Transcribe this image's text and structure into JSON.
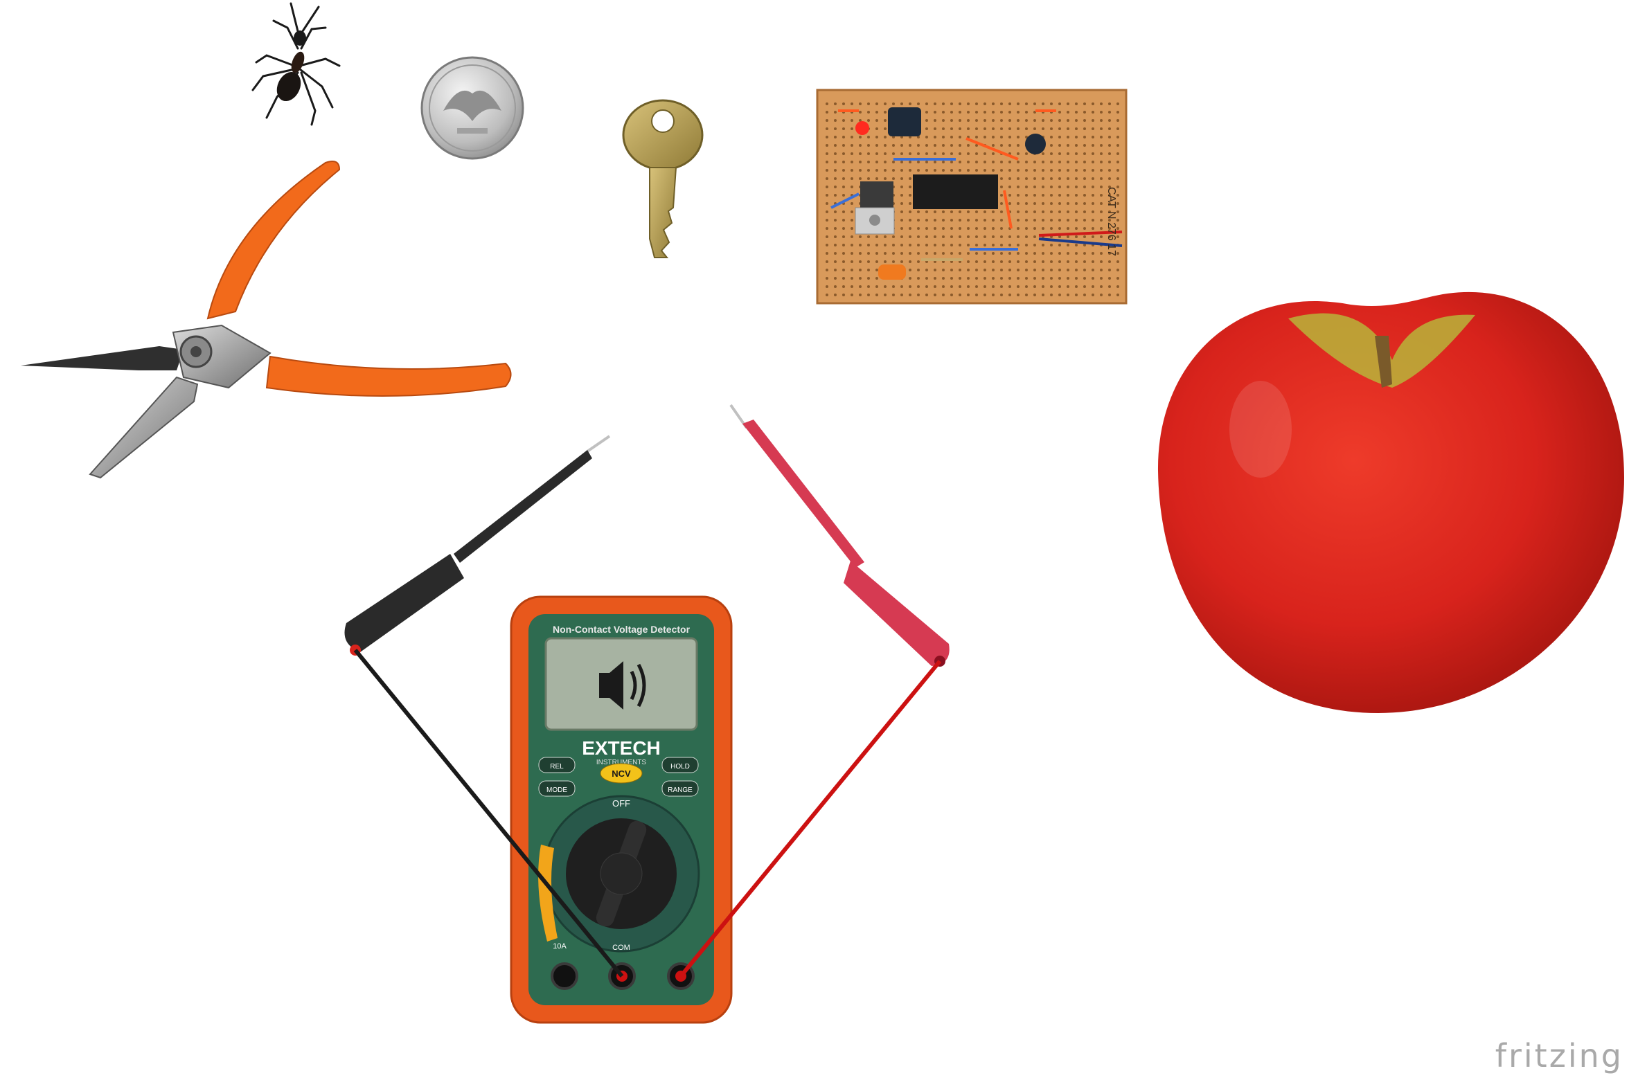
{
  "watermark": "fritzing",
  "multimeter": {
    "brand": "EXTECH",
    "subbrand": "INSTRUMENTS",
    "header": "Non-Contact Voltage Detector",
    "ncv": "NCV",
    "buttons": [
      "REL",
      "HOLD",
      "MODE",
      "RANGE"
    ],
    "dial_off": "OFF",
    "port_com": "COM",
    "port_10a": "10A"
  },
  "pcb_label": "CAT N 276 17",
  "colors": {
    "apple_red": "#d8231c",
    "handle_orange": "#f26a1b",
    "meter_orange": "#e8581c",
    "meter_green": "#2e6b50",
    "probe_black": "#2a2a2a",
    "probe_red": "#d63a52",
    "wire_red": "#cc1111",
    "pcb": "#d99a5b",
    "watermark_gray": "#a9a9a9"
  },
  "icons": [
    "ant-icon",
    "coin-icon",
    "key-icon",
    "circuit-board-icon",
    "pliers-icon",
    "apple-icon",
    "multimeter-icon",
    "speaker-icon"
  ]
}
